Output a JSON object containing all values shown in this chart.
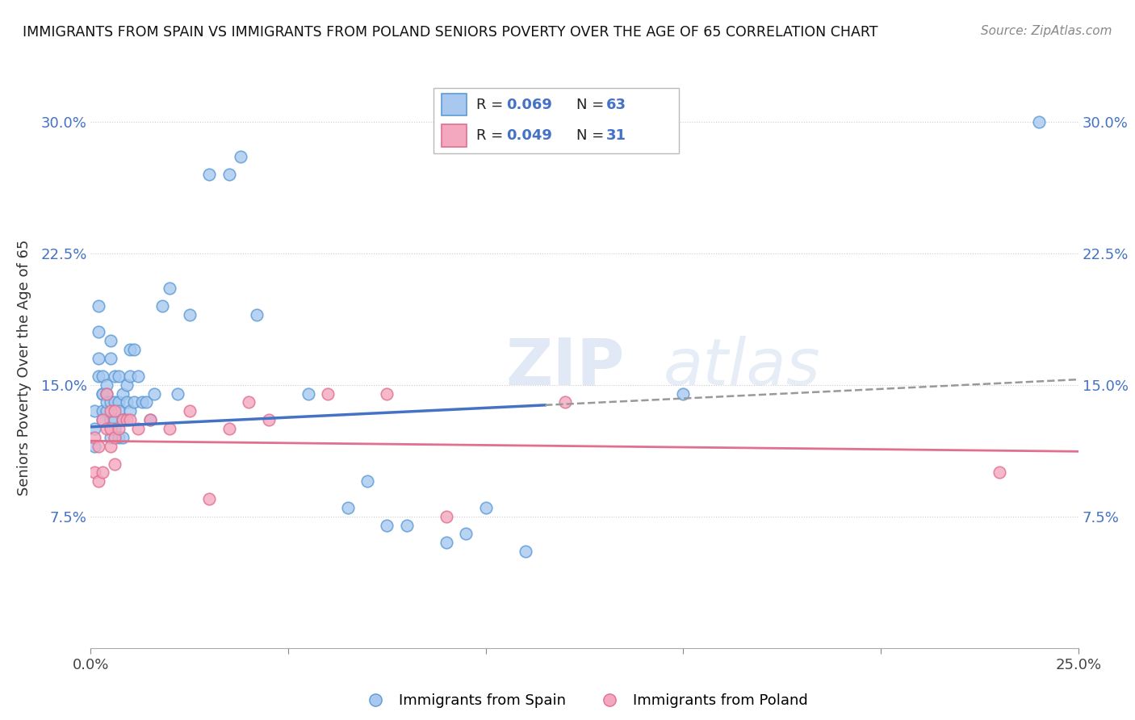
{
  "title": "IMMIGRANTS FROM SPAIN VS IMMIGRANTS FROM POLAND SENIORS POVERTY OVER THE AGE OF 65 CORRELATION CHART",
  "source": "Source: ZipAtlas.com",
  "ylabel": "Seniors Poverty Over the Age of 65",
  "xlim": [
    0.0,
    0.25
  ],
  "ylim": [
    0.0,
    0.32
  ],
  "xticks": [
    0.0,
    0.05,
    0.1,
    0.15,
    0.2,
    0.25
  ],
  "xtick_labels": [
    "0.0%",
    "",
    "",
    "",
    "",
    "25.0%"
  ],
  "yticks": [
    0.0,
    0.075,
    0.15,
    0.225,
    0.3
  ],
  "ytick_labels_left": [
    "",
    "7.5%",
    "15.0%",
    "22.5%",
    "30.0%"
  ],
  "spain_color": "#A8C8F0",
  "poland_color": "#F4A8C0",
  "spain_edge_color": "#5B9BD5",
  "poland_edge_color": "#E07090",
  "trend_spain_color": "#4472C4",
  "trend_poland_color": "#E07090",
  "spain_R": "0.069",
  "spain_N": "63",
  "poland_R": "0.049",
  "poland_N": "31",
  "watermark_zip": "ZIP",
  "watermark_atlas": "atlas",
  "legend_label_spain": "Immigrants from Spain",
  "legend_label_poland": "Immigrants from Poland",
  "spain_x": [
    0.001,
    0.001,
    0.001,
    0.002,
    0.002,
    0.002,
    0.002,
    0.003,
    0.003,
    0.003,
    0.003,
    0.003,
    0.004,
    0.004,
    0.004,
    0.004,
    0.005,
    0.005,
    0.005,
    0.005,
    0.005,
    0.006,
    0.006,
    0.006,
    0.006,
    0.007,
    0.007,
    0.007,
    0.007,
    0.008,
    0.008,
    0.008,
    0.009,
    0.009,
    0.01,
    0.01,
    0.01,
    0.011,
    0.011,
    0.012,
    0.013,
    0.014,
    0.015,
    0.016,
    0.018,
    0.02,
    0.022,
    0.025,
    0.03,
    0.035,
    0.038,
    0.042,
    0.055,
    0.065,
    0.07,
    0.075,
    0.08,
    0.09,
    0.095,
    0.1,
    0.11,
    0.15,
    0.24
  ],
  "spain_y": [
    0.135,
    0.125,
    0.115,
    0.195,
    0.18,
    0.165,
    0.155,
    0.145,
    0.135,
    0.155,
    0.145,
    0.13,
    0.135,
    0.15,
    0.145,
    0.14,
    0.175,
    0.165,
    0.14,
    0.13,
    0.12,
    0.155,
    0.14,
    0.13,
    0.125,
    0.155,
    0.14,
    0.135,
    0.12,
    0.145,
    0.13,
    0.12,
    0.15,
    0.14,
    0.17,
    0.155,
    0.135,
    0.17,
    0.14,
    0.155,
    0.14,
    0.14,
    0.13,
    0.145,
    0.195,
    0.205,
    0.145,
    0.19,
    0.27,
    0.27,
    0.28,
    0.19,
    0.145,
    0.08,
    0.095,
    0.07,
    0.07,
    0.06,
    0.065,
    0.08,
    0.055,
    0.145,
    0.3
  ],
  "poland_x": [
    0.001,
    0.001,
    0.002,
    0.002,
    0.003,
    0.003,
    0.004,
    0.004,
    0.005,
    0.005,
    0.005,
    0.006,
    0.006,
    0.006,
    0.007,
    0.008,
    0.009,
    0.01,
    0.012,
    0.015,
    0.02,
    0.025,
    0.03,
    0.035,
    0.04,
    0.045,
    0.06,
    0.075,
    0.09,
    0.12,
    0.23
  ],
  "poland_y": [
    0.12,
    0.1,
    0.115,
    0.095,
    0.13,
    0.1,
    0.145,
    0.125,
    0.135,
    0.125,
    0.115,
    0.135,
    0.12,
    0.105,
    0.125,
    0.13,
    0.13,
    0.13,
    0.125,
    0.13,
    0.125,
    0.135,
    0.085,
    0.125,
    0.14,
    0.13,
    0.145,
    0.145,
    0.075,
    0.14,
    0.1
  ],
  "spain_trend_solid_end": 0.115,
  "spain_trend_x0": 0.0,
  "spain_trend_y0": 0.126,
  "spain_trend_x1": 0.25,
  "spain_trend_y1": 0.153,
  "poland_trend_x0": 0.0,
  "poland_trend_y0": 0.118,
  "poland_trend_x1": 0.25,
  "poland_trend_y1": 0.112
}
